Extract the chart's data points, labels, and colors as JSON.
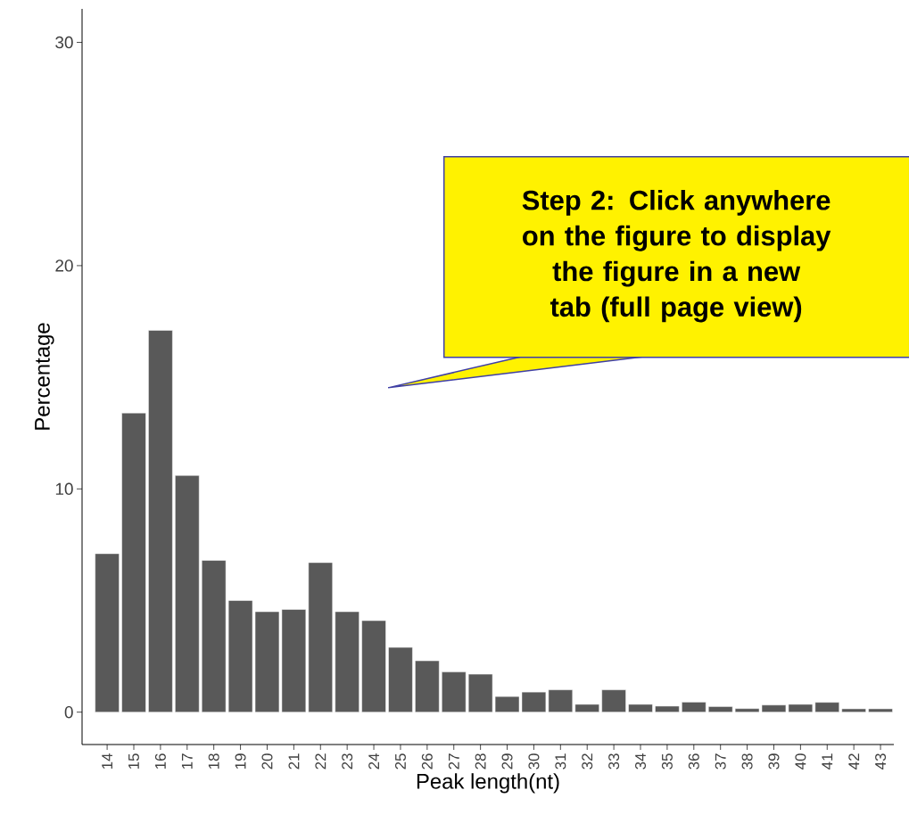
{
  "chart_data": {
    "type": "bar",
    "xlabel": "Peak length(nt)",
    "ylabel": "Percentage",
    "categories": [
      "14",
      "15",
      "16",
      "17",
      "18",
      "19",
      "20",
      "21",
      "22",
      "23",
      "24",
      "25",
      "26",
      "27",
      "28",
      "29",
      "30",
      "31",
      "32",
      "33",
      "34",
      "35",
      "36",
      "37",
      "38",
      "39",
      "40",
      "41",
      "42",
      "43"
    ],
    "values": [
      7.1,
      13.4,
      17.1,
      10.6,
      6.8,
      5.0,
      4.5,
      4.6,
      6.7,
      4.5,
      4.1,
      2.9,
      2.3,
      1.8,
      1.7,
      0.7,
      0.9,
      1.0,
      0.35,
      1.0,
      0.35,
      0.27,
      0.45,
      0.25,
      0.16,
      0.32,
      0.35,
      0.44,
      0.15,
      0.15
    ],
    "color": "#595959",
    "ylim": [
      -1.45,
      31.5
    ],
    "yticks": [
      0,
      10,
      20,
      30
    ],
    "grid": false,
    "annotations": [
      "Step 2: Click anywhere on the figure to display the figure in a new tab (full page view)"
    ]
  }
}
